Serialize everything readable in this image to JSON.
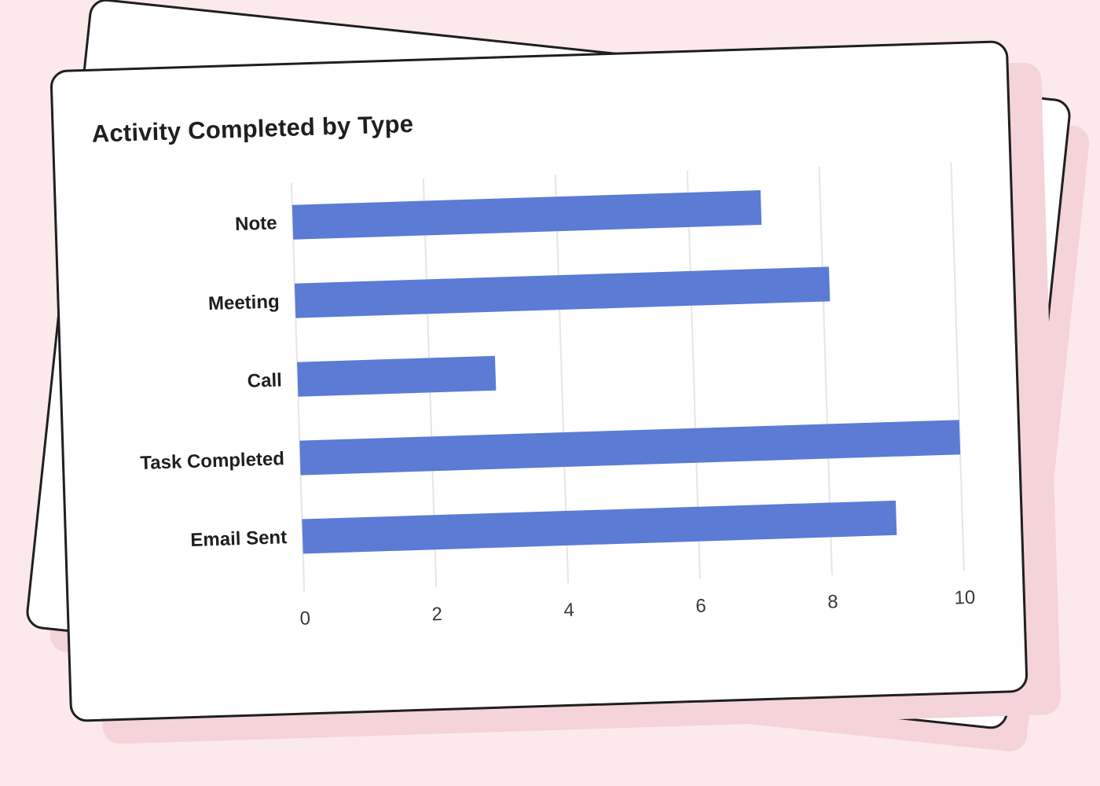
{
  "chart_data": {
    "type": "bar",
    "orientation": "horizontal",
    "title": "Activity Completed by Type",
    "xlabel": "",
    "ylabel": "",
    "categories": [
      "Note",
      "Meeting",
      "Call",
      "Task Completed",
      "Email Sent"
    ],
    "values": [
      7.1,
      8.1,
      3.0,
      10.0,
      9.0
    ],
    "xlim": [
      0,
      10
    ],
    "xticks": [
      0,
      2,
      4,
      6,
      8,
      10
    ],
    "grid": true,
    "legend": false,
    "bar_color": "#5b7bd5"
  },
  "colors": {
    "background": "#fce9ec",
    "card": "#ffffff",
    "card_border": "#1f1f1f",
    "gridline": "#e6e6e9"
  }
}
